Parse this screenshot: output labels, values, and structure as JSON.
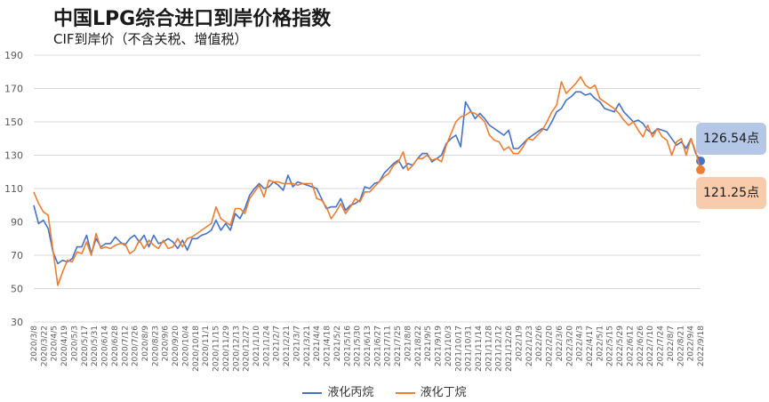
{
  "colors": {
    "propane": "#4472c4",
    "butane": "#ed7d31",
    "grid": "#d9d9d9",
    "text": "#595959"
  },
  "chart_data": {
    "type": "line",
    "title": "中国LPG综合进口到岸价格指数",
    "subtitle": "CIF到岸价（不含关税、增值税）",
    "ylim": [
      30,
      190
    ],
    "yticks": [
      30,
      50,
      70,
      90,
      110,
      130,
      150,
      170,
      190
    ],
    "grid": true,
    "legend_position": "bottom",
    "x_tick_labels": [
      "2020/3/8",
      "2020/3/22",
      "2020/4/5",
      "2020/4/19",
      "2020/5/3",
      "2020/5/17",
      "2020/5/31",
      "2020/6/14",
      "2020/6/28",
      "2020/7/12",
      "2020/7/26",
      "2020/8/9",
      "2020/8/23",
      "2020/9/6",
      "2020/9/20",
      "2020/10/4",
      "2020/10/18",
      "2020/11/1",
      "2020/11/15",
      "2020/11/29",
      "2020/12/13",
      "2020/12/27",
      "2021/1/10",
      "2021/1/24",
      "2021/2/7",
      "2021/2/21",
      "2021/3/7",
      "2021/3/21",
      "2021/4/4",
      "2021/4/18",
      "2021/5/2",
      "2021/5/16",
      "2021/5/30",
      "2021/6/13",
      "2021/6/27",
      "2021/7/11",
      "2021/7/25",
      "2021/8/8",
      "2021/8/22",
      "2021/9/5",
      "2021/9/19",
      "2021/10/3",
      "2021/10/17",
      "2021/10/31",
      "2021/11/14",
      "2021/11/28",
      "2021/12/12",
      "2021/12/26",
      "2022/1/9",
      "2022/1/23",
      "2022/2/6",
      "2022/2/20",
      "2022/3/6",
      "2022/3/20",
      "2022/4/3",
      "2022/4/17",
      "2022/5/1",
      "2022/5/15",
      "2022/5/29",
      "2022/6/12",
      "2022/6/26",
      "2022/7/10",
      "2022/7/24",
      "2022/8/7",
      "2022/8/21",
      "2022/9/4",
      "2022/9/18"
    ],
    "series": [
      {
        "name": "液化丙烷",
        "end_label": "126.54点",
        "values": [
          100,
          89,
          91,
          86,
          72,
          65,
          67,
          66,
          68,
          75,
          75,
          82,
          71,
          80,
          75,
          77,
          77,
          81,
          78,
          76,
          80,
          82,
          78,
          82,
          75,
          82,
          77,
          78,
          80,
          78,
          74,
          79,
          73,
          80,
          80,
          82,
          83,
          85,
          91,
          85,
          89,
          85,
          95,
          92,
          98,
          106,
          110,
          113,
          110,
          111,
          114,
          112,
          109,
          118,
          111,
          114,
          113,
          112,
          111,
          110,
          104,
          98,
          99,
          99,
          104,
          97,
          100,
          101,
          103,
          111,
          110,
          113,
          114,
          119,
          122,
          125,
          127,
          122,
          125,
          124,
          128,
          131,
          131,
          126,
          128,
          130,
          137,
          140,
          142,
          135,
          162,
          157,
          152,
          155,
          152,
          148,
          146,
          144,
          142,
          145,
          134,
          134,
          137,
          140,
          142,
          144,
          146,
          145,
          150,
          156,
          158,
          163,
          165,
          168,
          168,
          166,
          167,
          164,
          162,
          158,
          157,
          156,
          161,
          156,
          153,
          150,
          151,
          149,
          145,
          143,
          146,
          145,
          144,
          140,
          136,
          138,
          134,
          140,
          131,
          126.54
        ]
      },
      {
        "name": "液化丁烷",
        "end_label": "121.25点",
        "values": [
          108,
          101,
          96,
          94,
          73,
          52,
          60,
          67,
          66,
          72,
          71,
          78,
          70,
          83,
          74,
          75,
          74,
          76,
          77,
          77,
          71,
          73,
          79,
          74,
          79,
          76,
          74,
          79,
          74,
          75,
          80,
          75,
          80,
          81,
          83,
          85,
          87,
          89,
          99,
          92,
          90,
          88,
          98,
          98,
          95,
          104,
          108,
          112,
          105,
          115,
          114,
          114,
          113,
          113,
          113,
          112,
          113,
          113,
          113,
          104,
          103,
          99,
          92,
          96,
          101,
          95,
          99,
          104,
          102,
          108,
          108,
          111,
          114,
          117,
          119,
          124,
          126,
          132,
          121,
          124,
          128,
          128,
          130,
          127,
          128,
          126,
          136,
          143,
          150,
          153,
          154,
          156,
          155,
          153,
          150,
          142,
          139,
          138,
          133,
          135,
          131,
          131,
          135,
          140,
          139,
          142,
          145,
          150,
          156,
          160,
          174,
          167,
          170,
          173,
          177,
          172,
          170,
          172,
          164,
          162,
          160,
          158,
          155,
          151,
          148,
          150,
          145,
          141,
          148,
          141,
          146,
          141,
          139,
          130,
          138,
          140,
          130,
          140,
          132,
          121.25
        ]
      }
    ]
  }
}
